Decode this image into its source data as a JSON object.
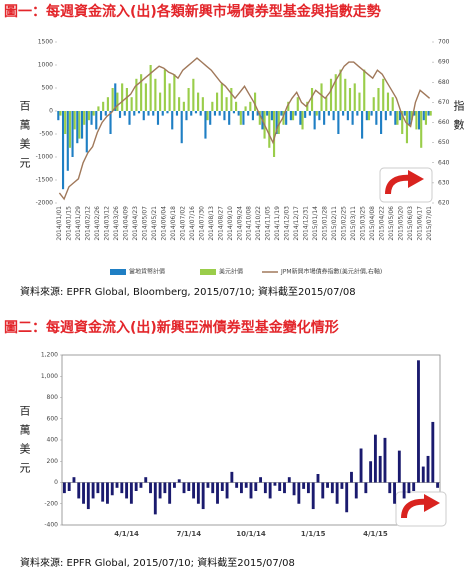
{
  "chart_data": [
    {
      "type": "bar",
      "title": "圖一：每週資金流入(出)各類新興市場債券型基金與指數走勢",
      "y_label": "百萬美元",
      "y2_label": "指數",
      "categories": [
        "2014/01/01",
        null,
        "2014/01/15",
        null,
        "2014/01/29",
        null,
        "2014/02/12",
        null,
        "2014/02/26",
        null,
        "2014/03/12",
        null,
        "2014/03/26",
        null,
        "2014/04/09",
        null,
        "2014/04/23",
        null,
        "2014/05/07",
        null,
        "2014/05/21",
        null,
        "2014/06/04",
        null,
        "2014/06/18",
        null,
        "2014/07/02",
        null,
        "2014/07/16",
        null,
        "2014/07/30",
        null,
        "2014/08/13",
        null,
        "2014/08/27",
        null,
        "2014/09/10",
        null,
        "2014/09/24",
        null,
        "2014/10/08",
        null,
        "2014/10/22",
        null,
        "2014/11/05",
        null,
        "2014/11/19",
        null,
        "2014/12/03",
        null,
        "2014/12/17",
        null,
        "2014/12/31",
        null,
        "2015/01/14",
        null,
        "2015/01/28",
        null,
        "2015/02/11",
        null,
        "2015/02/25",
        null,
        "2015/03/11",
        null,
        "2015/03/25",
        null,
        "2015/04/08",
        null,
        "2015/04/22",
        null,
        "2015/05/06",
        null,
        "2015/05/20",
        null,
        "2015/06/03",
        null,
        "2015/06/17",
        null,
        "2015/07/01"
      ],
      "series": [
        {
          "name": "當地貨幣計價",
          "color": "#1f7fc4",
          "type": "bar",
          "values": [
            -200,
            -1700,
            -1300,
            -1000,
            -700,
            -600,
            -900,
            -300,
            -400,
            -200,
            -100,
            -500,
            600,
            -150,
            -100,
            -300,
            -100,
            -50,
            -200,
            -100,
            -100,
            -300,
            -100,
            -50,
            -400,
            -100,
            -700,
            -200,
            -100,
            -50,
            -100,
            -600,
            -300,
            -100,
            -100,
            -200,
            -300,
            -50,
            -100,
            -300,
            -100,
            -200,
            -100,
            -400,
            -100,
            -200,
            -500,
            -100,
            -300,
            -200,
            -100,
            -300,
            -150,
            -100,
            -400,
            -200,
            -300,
            -100,
            -200,
            -500,
            -100,
            -200,
            -300,
            -100,
            -600,
            -200,
            -100,
            -300,
            -500,
            -200,
            -100,
            -300,
            -200,
            -100,
            -300,
            -100,
            -400,
            -200,
            -100
          ]
        },
        {
          "name": "美元計價",
          "color": "#9acd4a",
          "type": "bar",
          "values": [
            -100,
            -500,
            -800,
            -400,
            -600,
            -300,
            -200,
            -100,
            100,
            200,
            300,
            500,
            400,
            600,
            500,
            300,
            700,
            800,
            600,
            1000,
            700,
            400,
            900,
            600,
            800,
            300,
            200,
            500,
            700,
            400,
            300,
            -200,
            200,
            400,
            600,
            300,
            500,
            200,
            -300,
            100,
            200,
            400,
            -300,
            -600,
            -800,
            -1000,
            -500,
            -300,
            200,
            -200,
            300,
            -400,
            200,
            500,
            -100,
            600,
            300,
            700,
            800,
            900,
            700,
            500,
            600,
            400,
            900,
            -200,
            300,
            500,
            700,
            400,
            300,
            -300,
            -500,
            -700,
            -200,
            -400,
            -800,
            -300,
            -100
          ]
        },
        {
          "name": "JPM新興市場債券指數(美元計價,右軸)",
          "color": "#a0785a",
          "type": "line",
          "axis": "y2",
          "values": [
            625,
            622,
            628,
            630,
            632,
            640,
            645,
            648,
            655,
            660,
            663,
            665,
            668,
            670,
            672,
            674,
            678,
            680,
            682,
            684,
            686,
            688,
            687,
            685,
            684,
            682,
            686,
            688,
            690,
            692,
            690,
            688,
            686,
            683,
            680,
            678,
            675,
            672,
            675,
            678,
            674,
            670,
            665,
            660,
            655,
            650,
            658,
            662,
            668,
            672,
            675,
            670,
            668,
            672,
            676,
            674,
            672,
            675,
            680,
            684,
            688,
            690,
            690,
            688,
            686,
            684,
            682,
            686,
            684,
            680,
            676,
            672,
            665,
            660,
            658,
            670,
            676,
            674,
            672
          ]
        }
      ],
      "ylim": [
        -2000,
        1500
      ],
      "yticks": [
        -2000,
        -1500,
        -1000,
        -500,
        0,
        500,
        1000,
        1500
      ],
      "y2lim": [
        620,
        700
      ],
      "y2ticks": [
        620,
        630,
        640,
        650,
        660,
        670,
        680,
        690,
        700
      ],
      "legend": "bottom",
      "source": "資料來源: EPFR Global, Bloomberg, 2015/07/10; 資料截至2015/07/08"
    },
    {
      "type": "bar",
      "title": "圖二：每週資金流入(出)新興亞洲債券型基金變化情形",
      "y_label": "百萬美元",
      "categories": [
        null,
        null,
        null,
        null,
        null,
        null,
        null,
        null,
        null,
        null,
        null,
        null,
        null,
        "4/1/14",
        null,
        null,
        null,
        null,
        null,
        null,
        null,
        null,
        null,
        null,
        null,
        null,
        "7/1/14",
        null,
        null,
        null,
        null,
        null,
        null,
        null,
        null,
        null,
        null,
        null,
        null,
        "10/1/14",
        null,
        null,
        null,
        null,
        null,
        null,
        null,
        null,
        null,
        null,
        null,
        null,
        "1/1/15",
        null,
        null,
        null,
        null,
        null,
        null,
        null,
        null,
        null,
        null,
        null,
        null,
        "4/1/15",
        null,
        null,
        null,
        null,
        null,
        null,
        null,
        null,
        null,
        null,
        null,
        null,
        null
      ],
      "series": [
        {
          "color": "#1a1a6e",
          "values": [
            -100,
            -80,
            50,
            -150,
            -200,
            -250,
            -150,
            -100,
            -180,
            -200,
            -120,
            -50,
            -100,
            -150,
            -200,
            -80,
            -50,
            50,
            -100,
            -300,
            -150,
            -100,
            -200,
            -50,
            30,
            -100,
            -80,
            -150,
            -200,
            -250,
            -50,
            -100,
            -200,
            -80,
            -150,
            100,
            -50,
            -100,
            -50,
            -150,
            -80,
            50,
            -100,
            -150,
            -30,
            -80,
            -100,
            50,
            -120,
            -200,
            -60,
            -100,
            -250,
            80,
            -150,
            -50,
            -100,
            -200,
            -60,
            -280,
            100,
            -150,
            320,
            -100,
            200,
            450,
            250,
            420,
            -100,
            -200,
            300,
            -150,
            -100,
            -80,
            1150,
            150,
            250,
            570,
            -50
          ]
        }
      ],
      "ylim": [
        -400,
        1200
      ],
      "yticks": [
        -400,
        -200,
        0,
        200,
        400,
        600,
        800,
        {
          "value": 1000,
          "label": "1,000"
        },
        {
          "value": 1200,
          "label": "1,200"
        }
      ],
      "source": "資料來源: EPFR Global, 2015/07/10; 資料截至2015/07/08"
    }
  ]
}
